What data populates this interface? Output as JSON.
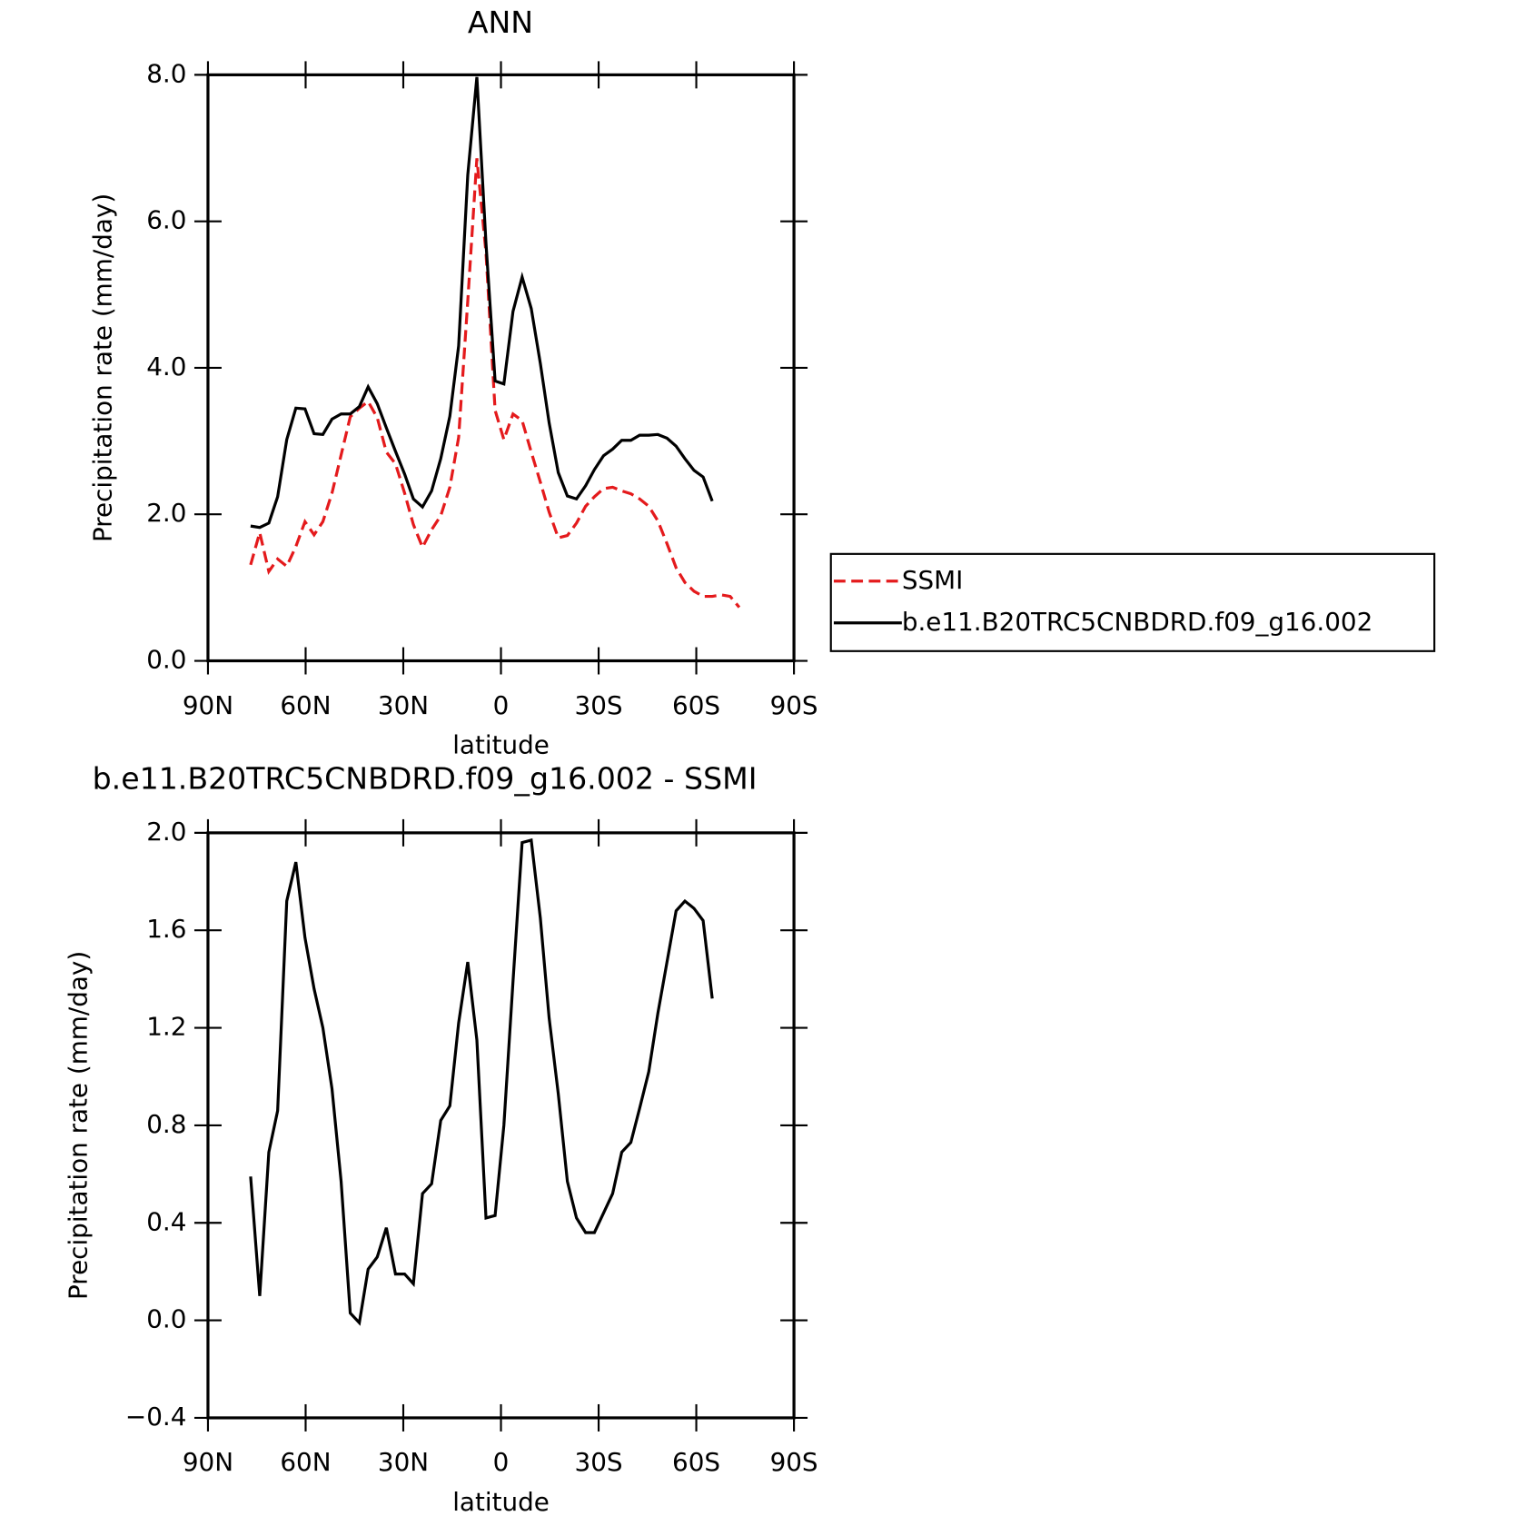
{
  "chart_data": [
    {
      "type": "line",
      "title": "ANN",
      "xlabel": "latitude",
      "ylabel": "Precipitation rate (mm/day)",
      "x": [
        76.9,
        74.1,
        71.3,
        68.6,
        65.8,
        63.0,
        60.2,
        57.4,
        54.7,
        51.9,
        49.1,
        46.3,
        43.5,
        40.8,
        38.0,
        35.2,
        32.4,
        29.6,
        26.9,
        24.1,
        21.3,
        18.5,
        15.7,
        13.0,
        10.2,
        7.4,
        4.6,
        1.8,
        -0.9,
        -3.7,
        -6.5,
        -9.3,
        -12.1,
        -14.8,
        -17.6,
        -20.4,
        -23.2,
        -26.0,
        -28.7,
        -31.5,
        -34.3,
        -37.1,
        -39.9,
        -42.6,
        -45.4,
        -48.2,
        -51.0,
        -53.8,
        -56.5,
        -59.3,
        -62.1,
        -64.9,
        -67.7,
        -70.4,
        -73.2
      ],
      "series": [
        {
          "name": "SSMI",
          "color": "#e41a1c",
          "linestyle": "dashed",
          "values": [
            1.31,
            1.75,
            1.22,
            1.39,
            1.29,
            1.56,
            1.9,
            1.72,
            1.9,
            2.29,
            2.81,
            3.33,
            3.45,
            3.54,
            3.32,
            2.85,
            2.69,
            2.29,
            1.86,
            1.55,
            1.79,
            1.98,
            2.37,
            3.05,
            4.91,
            6.86,
            5.57,
            3.42,
            3.02,
            3.37,
            3.28,
            2.85,
            2.44,
            2.03,
            1.68,
            1.71,
            1.88,
            2.11,
            2.24,
            2.35,
            2.37,
            2.32,
            2.28,
            2.21,
            2.11,
            1.91,
            1.6,
            1.27,
            1.07,
            0.95,
            0.88,
            0.88,
            0.9,
            0.88,
            0.73
          ]
        },
        {
          "name": "b.e11.B20TRC5CNBDRD.f09_g16.002",
          "color": "#000000",
          "linestyle": "solid",
          "values": [
            1.84,
            1.82,
            1.88,
            2.24,
            3.02,
            3.45,
            3.44,
            3.1,
            3.09,
            3.3,
            3.37,
            3.37,
            3.47,
            3.74,
            3.51,
            3.18,
            2.86,
            2.55,
            2.21,
            2.1,
            2.32,
            2.76,
            3.34,
            4.3,
            6.63,
            7.97,
            5.7,
            3.82,
            3.78,
            4.77,
            5.24,
            4.81,
            4.06,
            3.25,
            2.57,
            2.25,
            2.21,
            2.39,
            2.61,
            2.8,
            2.89,
            3.01,
            3.01,
            3.08,
            3.08,
            3.09,
            3.04,
            2.93,
            2.76,
            2.6,
            2.51,
            2.18,
            null,
            null,
            null
          ]
        }
      ],
      "xlim": [
        90,
        -90
      ],
      "xticks": [
        {
          "value": 90,
          "label": "90N"
        },
        {
          "value": 60,
          "label": "60N"
        },
        {
          "value": 30,
          "label": "30N"
        },
        0,
        {
          "value": -30,
          "label": "30S"
        },
        {
          "value": -60,
          "label": "60S"
        },
        {
          "value": -90,
          "label": "90S"
        }
      ],
      "ylim": [
        0,
        8
      ],
      "yticks": [
        {
          "value": 0,
          "label": "0.0"
        },
        {
          "value": 2,
          "label": "2.0"
        },
        {
          "value": 4,
          "label": "4.0"
        },
        {
          "value": 6,
          "label": "6.0"
        },
        {
          "value": 8,
          "label": "8.0"
        }
      ],
      "legend": "outside-right"
    },
    {
      "type": "line",
      "title": "b.e11.B20TRC5CNBDRD.f09_g16.002 - SSMI",
      "xlabel": "latitude",
      "ylabel": "Precipitation rate (mm/day)",
      "x": [
        76.9,
        74.1,
        71.3,
        68.6,
        65.8,
        63.0,
        60.2,
        57.4,
        54.7,
        51.9,
        49.1,
        46.3,
        43.5,
        40.8,
        38.0,
        35.2,
        32.4,
        29.6,
        26.9,
        24.1,
        21.3,
        18.5,
        15.7,
        13.0,
        10.2,
        7.4,
        4.6,
        1.8,
        -0.9,
        -3.7,
        -6.5,
        -9.3,
        -12.1,
        -14.8,
        -17.6,
        -20.4,
        -23.2,
        -26.0,
        -28.7,
        -31.5,
        -34.3,
        -37.1,
        -39.9,
        -42.6,
        -45.4,
        -48.2,
        -51.0,
        -53.8,
        -56.5,
        -59.3,
        -62.1,
        -64.9
      ],
      "series": [
        {
          "color": "#000000",
          "linestyle": "solid",
          "values": [
            0.59,
            0.1,
            0.69,
            0.86,
            1.72,
            1.88,
            1.57,
            1.36,
            1.2,
            0.95,
            0.57,
            0.03,
            -0.01,
            0.21,
            0.26,
            0.38,
            0.19,
            0.19,
            0.15,
            0.52,
            0.56,
            0.82,
            0.88,
            1.22,
            1.47,
            1.15,
            0.42,
            0.43,
            0.8,
            1.39,
            1.96,
            1.97,
            1.65,
            1.24,
            0.93,
            0.57,
            0.42,
            0.36,
            0.36,
            0.44,
            0.52,
            0.69,
            0.73,
            0.87,
            1.02,
            1.26,
            1.47,
            1.68,
            1.72,
            1.69,
            1.64,
            1.32
          ]
        }
      ],
      "xlim": [
        90,
        -90
      ],
      "xticks": [
        {
          "value": 90,
          "label": "90N"
        },
        {
          "value": 60,
          "label": "60N"
        },
        {
          "value": 30,
          "label": "30N"
        },
        0,
        {
          "value": -30,
          "label": "30S"
        },
        {
          "value": -60,
          "label": "60S"
        },
        {
          "value": -90,
          "label": "90S"
        }
      ],
      "ylim": [
        -0.4,
        2.0
      ],
      "yticks": [
        {
          "value": -0.4,
          "label": "−0.4"
        },
        {
          "value": 0,
          "label": "0.0"
        },
        {
          "value": 0.4,
          "label": "0.4"
        },
        {
          "value": 0.8,
          "label": "0.8"
        },
        {
          "value": 1.2,
          "label": "1.2"
        },
        {
          "value": 1.6,
          "label": "1.6"
        },
        {
          "value": 2.0,
          "label": "2.0"
        }
      ]
    }
  ]
}
